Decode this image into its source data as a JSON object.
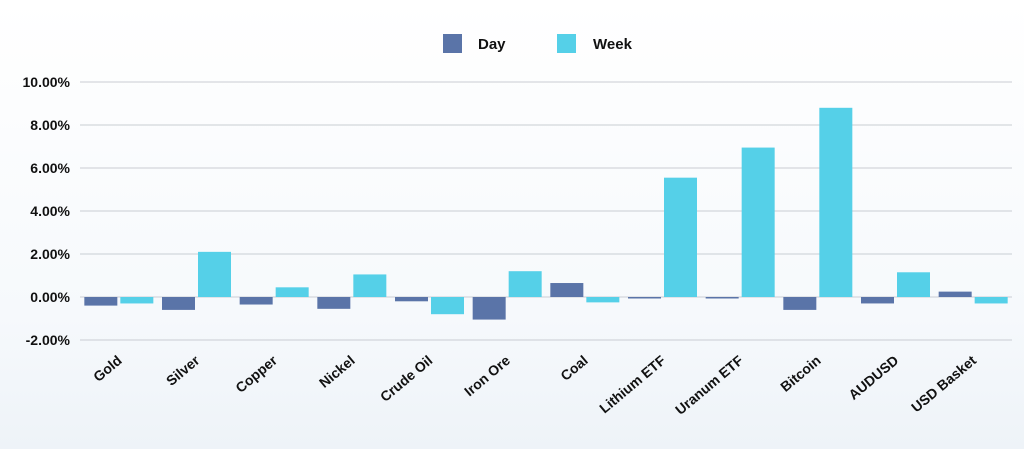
{
  "chart_data": {
    "type": "bar",
    "categories": [
      "Gold",
      "Silver",
      "Copper",
      "Nickel",
      "Crude Oil",
      "Iron Ore",
      "Coal",
      "Lithium ETF",
      "Uranum ETF",
      "Bitcoin",
      "AUDUSD",
      "USD Basket"
    ],
    "series": [
      {
        "name": "Day",
        "color": "#5a74a8",
        "values": [
          -0.4,
          -0.6,
          -0.35,
          -0.55,
          -0.2,
          -1.05,
          0.65,
          0.0,
          0.0,
          -0.6,
          -0.3,
          0.25
        ]
      },
      {
        "name": "Week",
        "color": "#55d0e8",
        "values": [
          -0.3,
          2.1,
          0.45,
          1.05,
          -0.8,
          1.2,
          -0.25,
          5.55,
          6.95,
          8.8,
          1.15,
          -0.3
        ]
      }
    ],
    "yticks": [
      "10.00%",
      "8.00%",
      "6.00%",
      "4.00%",
      "2.00%",
      "0.00%",
      "-2.00%"
    ],
    "ylim": [
      -2,
      10
    ],
    "legend": "top-center",
    "grid": true
  }
}
